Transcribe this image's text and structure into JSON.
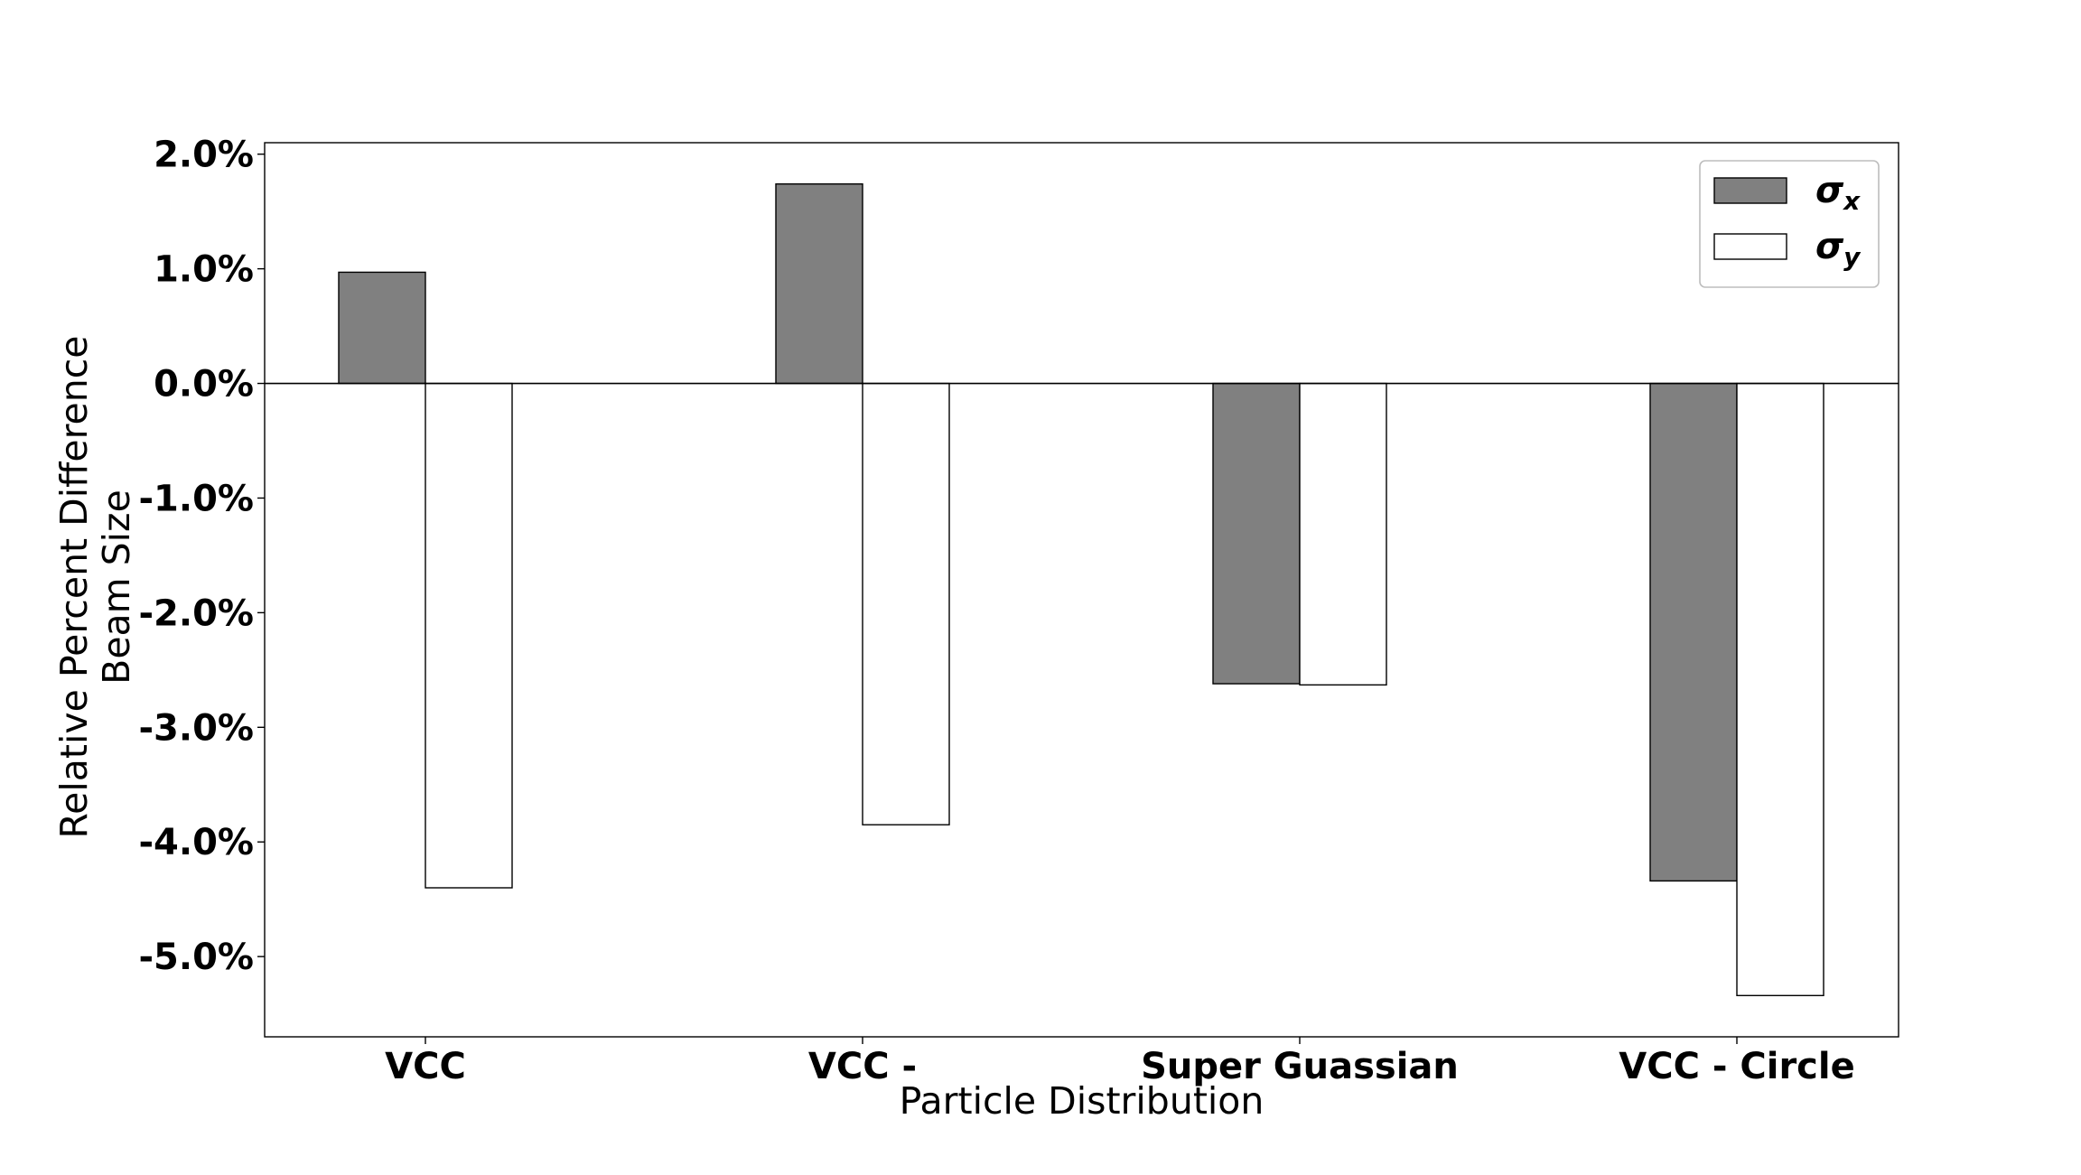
{
  "chart_data": {
    "type": "bar",
    "xlabel": "Particle Distribution",
    "ylabel_lines": [
      "Relative Percent Difference",
      "Beam Size"
    ],
    "categories": [
      "VCC",
      "VCC -",
      "Super Guassian",
      "VCC - Circle"
    ],
    "ylim": [
      -5.7,
      2.1
    ],
    "yticks": [
      2.0,
      1.0,
      0.0,
      -1.0,
      -2.0,
      -3.0,
      -4.0,
      -5.0
    ],
    "ytick_labels": [
      "2.0%",
      "1.0%",
      "0.0%",
      "-1.0%",
      "-2.0%",
      "-3.0%",
      "-4.0%",
      "-5.0%"
    ],
    "series": [
      {
        "name": "σx",
        "symbol": "σ",
        "subscript": "x",
        "color": "#808080",
        "values": [
          0.97,
          1.74,
          -2.62,
          -4.34
        ]
      },
      {
        "name": "σy",
        "symbol": "σ",
        "subscript": "y",
        "color": "#ffffff",
        "values": [
          -4.4,
          -3.85,
          -2.63,
          -5.34
        ]
      }
    ],
    "legend_position": "top-right",
    "grid": false,
    "zero_line": true
  }
}
